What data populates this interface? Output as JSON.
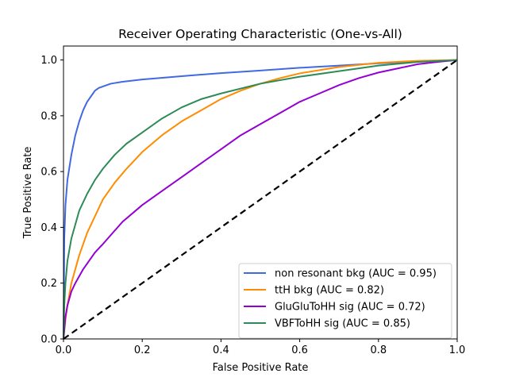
{
  "chart_data": {
    "type": "line",
    "title": "Receiver Operating Characteristic (One-vs-All)",
    "xlabel": "False Positive Rate",
    "ylabel": "True Positive Rate",
    "xlim": [
      0,
      1
    ],
    "ylim": [
      0,
      1.05
    ],
    "xticks": [
      0.0,
      0.2,
      0.4,
      0.6,
      0.8,
      1.0
    ],
    "xtick_labels": [
      "0.0",
      "0.2",
      "0.4",
      "0.6",
      "0.8",
      "1.0"
    ],
    "yticks": [
      0.0,
      0.2,
      0.4,
      0.6,
      0.8,
      1.0
    ],
    "ytick_labels": [
      "0.0",
      "0.2",
      "0.4",
      "0.6",
      "0.8",
      "1.0"
    ],
    "grid": false,
    "legend_position": "bottom-right",
    "series": [
      {
        "name": "non resonant bkg (AUC = 0.95)",
        "color": "#4169e1",
        "x": [
          0,
          0.002,
          0.005,
          0.01,
          0.02,
          0.03,
          0.04,
          0.05,
          0.06,
          0.07,
          0.08,
          0.09,
          0.1,
          0.12,
          0.15,
          0.2,
          0.3,
          0.4,
          0.5,
          0.6,
          0.7,
          0.8,
          0.9,
          1.0
        ],
        "y": [
          0,
          0.36,
          0.48,
          0.57,
          0.66,
          0.73,
          0.78,
          0.82,
          0.85,
          0.87,
          0.89,
          0.9,
          0.905,
          0.915,
          0.922,
          0.93,
          0.942,
          0.953,
          0.962,
          0.972,
          0.98,
          0.988,
          0.995,
          1.0
        ]
      },
      {
        "name": "ttH bkg (AUC = 0.82)",
        "color": "#ff8c00",
        "x": [
          0,
          0.005,
          0.01,
          0.02,
          0.04,
          0.06,
          0.08,
          0.1,
          0.13,
          0.16,
          0.2,
          0.25,
          0.3,
          0.35,
          0.4,
          0.45,
          0.5,
          0.55,
          0.6,
          0.7,
          0.8,
          0.9,
          1.0
        ],
        "y": [
          0,
          0.07,
          0.12,
          0.2,
          0.3,
          0.38,
          0.44,
          0.5,
          0.56,
          0.61,
          0.67,
          0.73,
          0.78,
          0.82,
          0.86,
          0.89,
          0.915,
          0.935,
          0.952,
          0.975,
          0.99,
          0.997,
          1.0
        ]
      },
      {
        "name": "GluGluToHH sig (AUC = 0.72)",
        "color": "#9400d3",
        "x": [
          0,
          0.005,
          0.01,
          0.02,
          0.03,
          0.05,
          0.08,
          0.1,
          0.15,
          0.2,
          0.25,
          0.3,
          0.35,
          0.4,
          0.45,
          0.5,
          0.55,
          0.6,
          0.65,
          0.7,
          0.75,
          0.8,
          0.85,
          0.9,
          0.95,
          1.0
        ],
        "y": [
          0,
          0.08,
          0.12,
          0.17,
          0.2,
          0.25,
          0.31,
          0.34,
          0.42,
          0.48,
          0.53,
          0.58,
          0.63,
          0.68,
          0.73,
          0.77,
          0.81,
          0.85,
          0.88,
          0.91,
          0.935,
          0.955,
          0.97,
          0.985,
          0.993,
          1.0
        ]
      },
      {
        "name": "VBFToHH sig (AUC = 0.85)",
        "color": "#2e8b57",
        "x": [
          0,
          0.002,
          0.005,
          0.01,
          0.02,
          0.03,
          0.04,
          0.06,
          0.08,
          0.1,
          0.13,
          0.16,
          0.2,
          0.25,
          0.3,
          0.35,
          0.4,
          0.5,
          0.6,
          0.7,
          0.8,
          0.9,
          1.0
        ],
        "y": [
          0,
          0.12,
          0.2,
          0.28,
          0.36,
          0.41,
          0.46,
          0.52,
          0.57,
          0.61,
          0.66,
          0.7,
          0.74,
          0.79,
          0.83,
          0.86,
          0.88,
          0.915,
          0.94,
          0.96,
          0.98,
          0.993,
          1.0
        ]
      },
      {
        "name": "",
        "color": "#000000",
        "dashed": true,
        "x": [
          0,
          1
        ],
        "y": [
          0,
          1
        ]
      }
    ]
  }
}
